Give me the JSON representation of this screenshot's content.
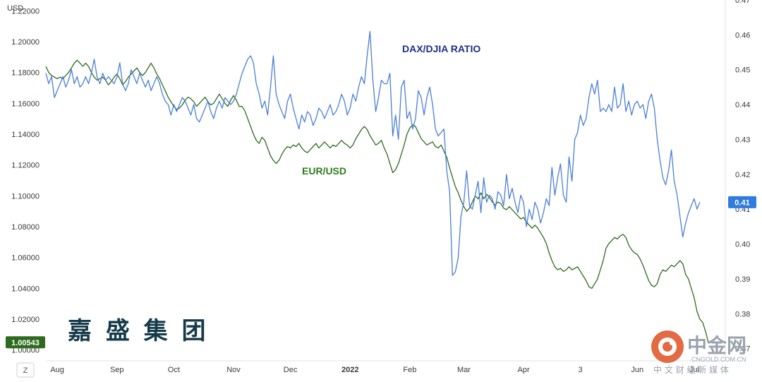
{
  "chart_data": {
    "type": "line",
    "left_axis_unit": "USD",
    "left_axis": {
      "min": 0.993,
      "max": 1.227,
      "ticks": [
        1.0,
        1.02,
        1.04,
        1.06,
        1.08,
        1.1,
        1.12,
        1.14,
        1.16,
        1.18,
        1.2,
        1.22
      ],
      "tick_labels": [
        "1.00000",
        "1.02000",
        "1.04000",
        "1.06000",
        "1.08000",
        "1.10000",
        "1.12000",
        "1.14000",
        "1.16000",
        "1.18000",
        "1.20000",
        "1.22000"
      ]
    },
    "right_axis": {
      "min": 0.3665,
      "max": 0.47,
      "ticks": [
        0.37,
        0.38,
        0.39,
        0.4,
        0.41,
        0.42,
        0.43,
        0.44,
        0.45,
        0.46,
        0.47
      ],
      "tick_labels": [
        "0.37",
        "0.38",
        "0.39",
        "0.40",
        "0.41",
        "0.42",
        "0.43",
        "0.44",
        "0.45",
        "0.46",
        "0.47"
      ]
    },
    "x_axis": {
      "ticks": [
        "Aug",
        "Sep",
        "Oct",
        "Nov",
        "Dec",
        "2022",
        "Feb",
        "Mar",
        "Apr",
        "3",
        "Jun",
        "Jul"
      ],
      "tick_index": [
        4,
        25,
        45,
        66,
        86,
        107,
        128,
        147,
        168,
        188,
        208,
        228
      ],
      "year_tick": "2022"
    },
    "series": [
      {
        "name": "EUR/USD",
        "color": "#2e6b1f",
        "axis": "left",
        "last_value": "1.00543",
        "values": [
          1.184,
          1.18,
          1.178,
          1.177,
          1.176,
          1.177,
          1.176,
          1.178,
          1.18,
          1.183,
          1.186,
          1.188,
          1.186,
          1.184,
          1.186,
          1.184,
          1.18,
          1.177,
          1.175,
          1.176,
          1.177,
          1.175,
          1.172,
          1.174,
          1.177,
          1.179,
          1.176,
          1.172,
          1.174,
          1.177,
          1.179,
          1.181,
          1.183,
          1.18,
          1.178,
          1.18,
          1.183,
          1.186,
          1.183,
          1.179,
          1.176,
          1.172,
          1.168,
          1.164,
          1.161,
          1.158,
          1.156,
          1.157,
          1.159,
          1.162,
          1.164,
          1.163,
          1.161,
          1.158,
          1.16,
          1.162,
          1.164,
          1.161,
          1.159,
          1.16,
          1.163,
          1.166,
          1.163,
          1.16,
          1.158,
          1.162,
          1.165,
          1.162,
          1.158,
          1.158,
          1.155,
          1.15,
          1.145,
          1.14,
          1.136,
          1.134,
          1.138,
          1.136,
          1.131,
          1.126,
          1.123,
          1.121,
          1.123,
          1.127,
          1.13,
          1.132,
          1.131,
          1.133,
          1.132,
          1.134,
          1.131,
          1.129,
          1.128,
          1.13,
          1.132,
          1.134,
          1.131,
          1.133,
          1.135,
          1.133,
          1.131,
          1.133,
          1.132,
          1.134,
          1.136,
          1.134,
          1.133,
          1.131,
          1.133,
          1.137,
          1.14,
          1.143,
          1.145,
          1.143,
          1.139,
          1.136,
          1.133,
          1.134,
          1.136,
          1.131,
          1.127,
          1.121,
          1.115,
          1.117,
          1.121,
          1.127,
          1.133,
          1.14,
          1.144,
          1.146,
          1.145,
          1.141,
          1.137,
          1.135,
          1.133,
          1.134,
          1.135,
          1.132,
          1.131,
          1.133,
          1.129,
          1.125,
          1.118,
          1.112,
          1.106,
          1.102,
          1.097,
          1.093,
          1.09,
          1.092,
          1.096,
          1.1,
          1.098,
          1.102,
          1.098,
          1.101,
          1.099,
          1.096,
          1.094,
          1.096,
          1.095,
          1.092,
          1.091,
          1.093,
          1.091,
          1.089,
          1.087,
          1.085,
          1.086,
          1.083,
          1.081,
          1.079,
          1.081,
          1.079,
          1.076,
          1.073,
          1.069,
          1.063,
          1.058,
          1.054,
          1.052,
          1.053,
          1.051,
          1.052,
          1.054,
          1.052,
          1.053,
          1.054,
          1.051,
          1.048,
          1.045,
          1.041,
          1.04,
          1.043,
          1.046,
          1.052,
          1.058,
          1.066,
          1.069,
          1.071,
          1.073,
          1.072,
          1.074,
          1.075,
          1.073,
          1.068,
          1.065,
          1.063,
          1.062,
          1.059,
          1.055,
          1.05,
          1.045,
          1.042,
          1.041,
          1.043,
          1.049,
          1.052,
          1.051,
          1.053,
          1.055,
          1.054,
          1.056,
          1.058,
          1.056,
          1.049,
          1.046,
          1.04,
          1.034,
          1.025,
          1.02,
          1.018,
          1.012,
          1.005
        ]
      },
      {
        "name": "DAX/DJIA RATIO",
        "color": "#4a7fd6",
        "axis": "right",
        "last_value": "0.41",
        "values": [
          0.449,
          0.446,
          0.448,
          0.442,
          0.444,
          0.446,
          0.448,
          0.445,
          0.447,
          0.45,
          0.446,
          0.448,
          0.445,
          0.446,
          0.448,
          0.446,
          0.449,
          0.453,
          0.448,
          0.446,
          0.449,
          0.447,
          0.448,
          0.447,
          0.446,
          0.448,
          0.452,
          0.446,
          0.444,
          0.446,
          0.45,
          0.448,
          0.446,
          0.449,
          0.447,
          0.445,
          0.447,
          0.444,
          0.446,
          0.448,
          0.446,
          0.443,
          0.441,
          0.44,
          0.437,
          0.44,
          0.438,
          0.44,
          0.442,
          0.441,
          0.439,
          0.437,
          0.44,
          0.436,
          0.435,
          0.437,
          0.439,
          0.441,
          0.438,
          0.436,
          0.439,
          0.441,
          0.439,
          0.442,
          0.441,
          0.44,
          0.441,
          0.443,
          0.446,
          0.449,
          0.451,
          0.453,
          0.454,
          0.452,
          0.446,
          0.443,
          0.439,
          0.441,
          0.437,
          0.445,
          0.454,
          0.443,
          0.44,
          0.438,
          0.436,
          0.441,
          0.443,
          0.439,
          0.436,
          0.433,
          0.437,
          0.435,
          0.438,
          0.437,
          0.434,
          0.436,
          0.439,
          0.438,
          0.436,
          0.438,
          0.44,
          0.437,
          0.438,
          0.44,
          0.443,
          0.441,
          0.437,
          0.439,
          0.443,
          0.441,
          0.445,
          0.448,
          0.446,
          0.454,
          0.461,
          0.447,
          0.438,
          0.442,
          0.447,
          0.446,
          0.446,
          0.449,
          0.431,
          0.437,
          0.43,
          0.445,
          0.447,
          0.436,
          0.438,
          0.433,
          0.436,
          0.444,
          0.442,
          0.437,
          0.442,
          0.445,
          0.44,
          0.433,
          0.431,
          0.432,
          0.433,
          0.421,
          0.415,
          0.391,
          0.392,
          0.396,
          0.408,
          0.412,
          0.421,
          0.411,
          0.41,
          0.414,
          0.418,
          0.409,
          0.419,
          0.412,
          0.414,
          0.413,
          0.41,
          0.415,
          0.414,
          0.411,
          0.42,
          0.413,
          0.416,
          0.412,
          0.409,
          0.414,
          0.412,
          0.405,
          0.41,
          0.407,
          0.412,
          0.41,
          0.406,
          0.409,
          0.413,
          0.411,
          0.422,
          0.414,
          0.419,
          0.423,
          0.414,
          0.412,
          0.425,
          0.418,
          0.43,
          0.432,
          0.437,
          0.434,
          0.436,
          0.442,
          0.446,
          0.443,
          0.447,
          0.438,
          0.439,
          0.438,
          0.44,
          0.438,
          0.445,
          0.439,
          0.44,
          0.446,
          0.438,
          0.441,
          0.437,
          0.44,
          0.441,
          0.439,
          0.44,
          0.436,
          0.441,
          0.443,
          0.439,
          0.43,
          0.424,
          0.419,
          0.417,
          0.421,
          0.427,
          0.418,
          0.414,
          0.408,
          0.402,
          0.406,
          0.409,
          0.411,
          0.413,
          0.41,
          0.412
        ]
      }
    ],
    "series_labels": {
      "ratio": "DAX/DJIA RATIO",
      "eurusd": "EUR/USD"
    }
  },
  "toolbar": {
    "zoom_button": "Z"
  },
  "watermark": {
    "company": "嘉 盛 集 团",
    "site_cn": "中金网",
    "site_domain": "CNGOLD.COM.CN",
    "site_tagline": "中 文 财 经 新 媒 体"
  },
  "colors": {
    "eurusd_line": "#2e6b1f",
    "ratio_line": "#4a7fd6",
    "ratio_label": "#1f2f8c",
    "eurusd_label": "#2e7d1f",
    "company_text": "#153a4a",
    "site_red": "#e36a43",
    "site_gray": "#9aa3ad",
    "badge_green": "#2e6b1f",
    "badge_blue": "#2f7be0"
  }
}
